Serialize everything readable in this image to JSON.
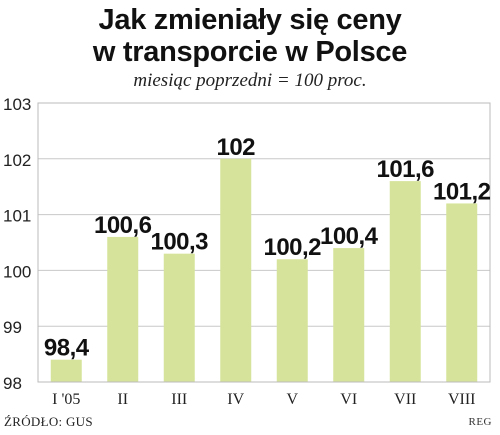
{
  "header": {
    "title_line1": "Jak zmieniały się ceny",
    "title_line2": "w transporcie w Polsce",
    "subtitle": "miesiąc  poprzedni = 100 proc."
  },
  "footer": {
    "source": "ŹRÓDŁO: GUS",
    "credit": "REG"
  },
  "colors": {
    "bar": "#d6e39a",
    "frame": "#bbbbbb",
    "grid": "#c8c8c8",
    "text": "#111111"
  },
  "chart_data": {
    "type": "bar",
    "categories": [
      "I '05",
      "II",
      "III",
      "IV",
      "V",
      "VI",
      "VII",
      "VIII"
    ],
    "values": [
      98.4,
      100.6,
      100.3,
      102,
      100.2,
      100.4,
      101.6,
      101.2
    ],
    "value_labels": [
      "98,4",
      "100,6",
      "100,3",
      "102",
      "100,2",
      "100,4",
      "101,6",
      "101,2"
    ],
    "yticks": [
      98,
      99,
      100,
      101,
      102,
      103
    ],
    "ytick_labels": [
      "98",
      "99",
      "100",
      "101",
      "102",
      "103"
    ],
    "ylim": [
      98,
      103
    ],
    "title": "Jak zmieniały się ceny w transporcie w Polsce",
    "xlabel": "",
    "ylabel": "",
    "grid": true,
    "legend": "none"
  }
}
